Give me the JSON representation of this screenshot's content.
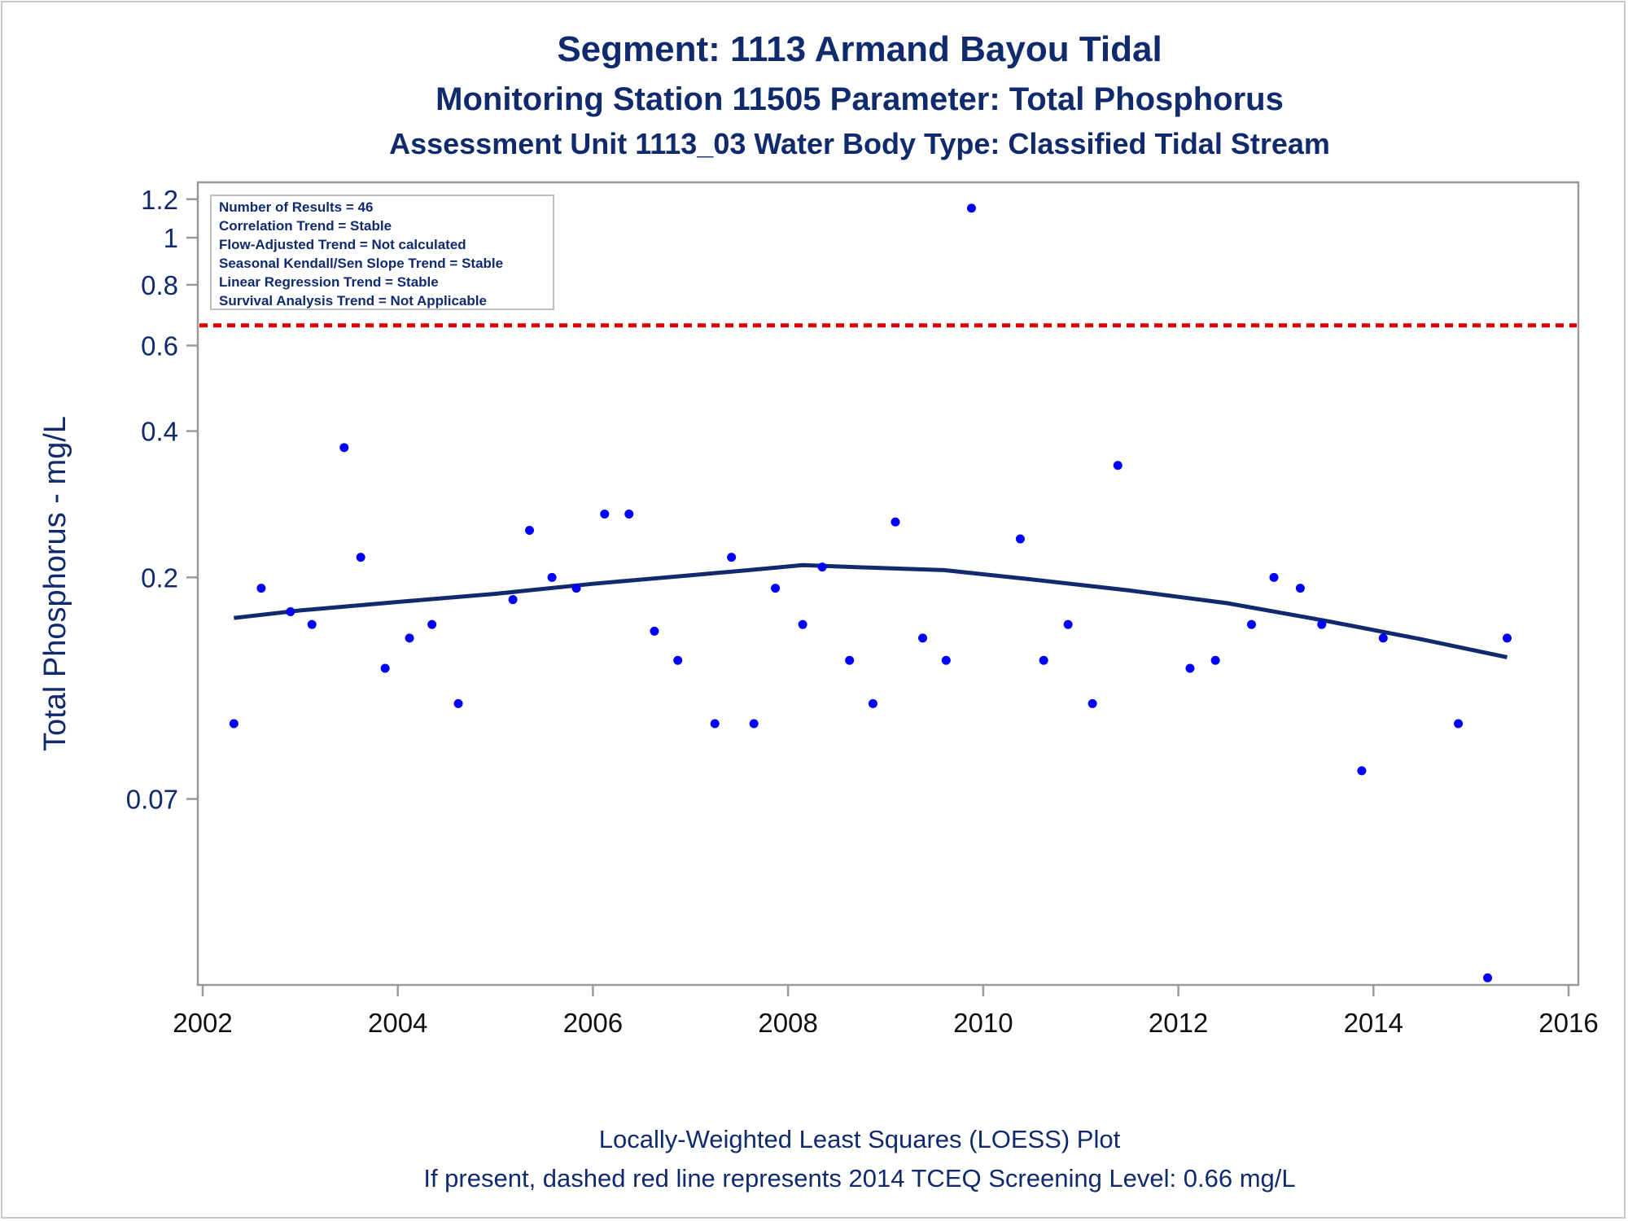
{
  "titles": {
    "line1": "Segment: 1113  Armand Bayou Tidal",
    "line2": "Monitoring Station 11505 Parameter: Total Phosphorus",
    "line3": "Assessment Unit 1113_03   Water Body Type: Classified Tidal Stream"
  },
  "footnotes": {
    "line1": "Locally-Weighted Least Squares (LOESS) Plot",
    "line2": "If present, dashed red line represents 2014 TCEQ Screening Level: 0.66 mg/L"
  },
  "stats_box": [
    "Number of Results = 46",
    "Correlation Trend = Stable",
    "Flow-Adjusted Trend = Not calculated",
    "Seasonal Kendall/Sen Slope Trend = Stable",
    "Linear Regression Trend = Stable",
    "Survival Analysis Trend = Not Applicable"
  ],
  "colors": {
    "points": "#0000ff",
    "loess": "#102a6e",
    "screening_line": "#dd0000",
    "text": "#102a6e",
    "axis": "#9a9a9a"
  },
  "chart_data": {
    "type": "scatter",
    "ylabel": "Total Phosphorus - mg/L",
    "xlabel": "",
    "yscale": "log",
    "xlim": [
      2001.95,
      2016.1
    ],
    "ylim": [
      0.029,
      1.3
    ],
    "x_ticks": [
      2002,
      2004,
      2006,
      2008,
      2010,
      2012,
      2014,
      2016
    ],
    "y_ticks": [
      {
        "value": 0.07,
        "label": "0.07"
      },
      {
        "value": 0.2,
        "label": "0.2"
      },
      {
        "value": 0.4,
        "label": "0.4"
      },
      {
        "value": 0.6,
        "label": "0.6"
      },
      {
        "value": 0.8,
        "label": "0.8"
      },
      {
        "value": 1.0,
        "label": "1"
      },
      {
        "value": 1.2,
        "label": "1.2"
      }
    ],
    "screening_level": 0.66,
    "legend": "top-left",
    "grid": false,
    "series": [
      {
        "type": "scatter",
        "x": [
          2002.32,
          2002.6,
          2002.9,
          2003.12,
          2003.45,
          2003.62,
          2003.87,
          2004.12,
          2004.35,
          2004.62,
          2005.18,
          2005.35,
          2005.58,
          2005.83,
          2006.12,
          2006.37,
          2006.63,
          2006.87,
          2007.25,
          2007.42,
          2007.65,
          2007.87,
          2008.15,
          2008.35,
          2008.63,
          2008.87,
          2009.1,
          2009.38,
          2009.62,
          2009.88,
          2010.38,
          2010.62,
          2010.87,
          2011.12,
          2011.38,
          2012.12,
          2012.38,
          2012.75,
          2012.98,
          2013.25,
          2013.47,
          2013.88,
          2014.1,
          2014.87,
          2015.17,
          2015.37
        ],
        "y": [
          0.1,
          0.19,
          0.17,
          0.16,
          0.37,
          0.22,
          0.13,
          0.15,
          0.16,
          0.11,
          0.18,
          0.25,
          0.2,
          0.19,
          0.27,
          0.27,
          0.155,
          0.135,
          0.1,
          0.22,
          0.1,
          0.19,
          0.16,
          0.21,
          0.135,
          0.11,
          0.26,
          0.15,
          0.135,
          1.15,
          0.24,
          0.135,
          0.16,
          0.11,
          0.34,
          0.13,
          0.135,
          0.16,
          0.2,
          0.19,
          0.16,
          0.08,
          0.15,
          0.1,
          0.03,
          0.15
        ]
      },
      {
        "type": "line",
        "x": [
          2002.32,
          2003.0,
          2004.0,
          2005.0,
          2006.0,
          2007.0,
          2007.6,
          2008.15,
          2008.7,
          2009.6,
          2010.5,
          2011.5,
          2012.5,
          2013.5,
          2014.5,
          2015.37
        ],
        "y": [
          0.165,
          0.171,
          0.178,
          0.185,
          0.194,
          0.202,
          0.207,
          0.212,
          0.21,
          0.207,
          0.198,
          0.188,
          0.177,
          0.163,
          0.149,
          0.137
        ]
      }
    ]
  }
}
